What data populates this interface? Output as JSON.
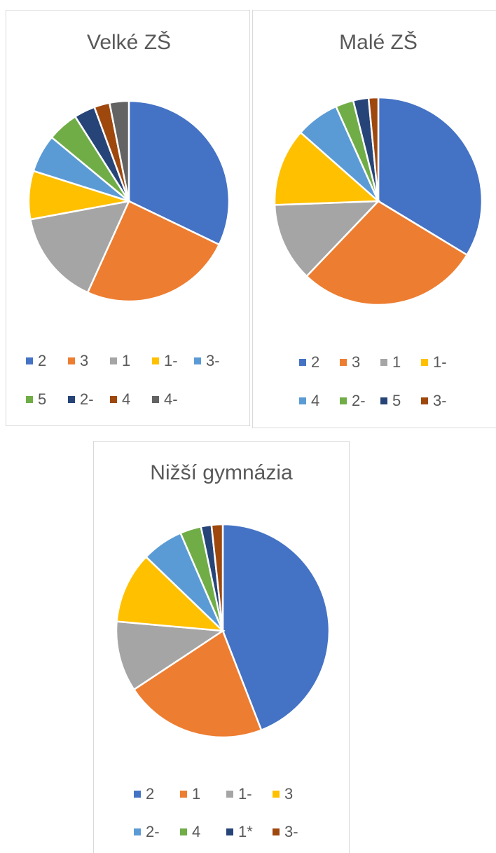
{
  "chart_data": [
    {
      "type": "pie",
      "title": "Velké ZŠ",
      "categories": [
        "2",
        "3",
        "1",
        "1-",
        "3-",
        "5",
        "2-",
        "4",
        "4-"
      ],
      "values": [
        32.1,
        24.6,
        15.3,
        7.8,
        6.1,
        5.0,
        3.4,
        2.5,
        3.1
      ],
      "colors": [
        "#4472c4",
        "#ed7d31",
        "#a5a5a5",
        "#ffc000",
        "#5b9bd5",
        "#70ad47",
        "#264478",
        "#9e480e",
        "#636363"
      ]
    },
    {
      "type": "pie",
      "title": "Malé ZŠ",
      "categories": [
        "2",
        "3",
        "1",
        "1-",
        "4",
        "2-",
        "5",
        "3-"
      ],
      "values": [
        33.7,
        28.5,
        12.3,
        12.1,
        6.8,
        2.8,
        2.4,
        1.5
      ],
      "colors": [
        "#4472c4",
        "#ed7d31",
        "#a5a5a5",
        "#ffc000",
        "#5b9bd5",
        "#70ad47",
        "#264478",
        "#9e480e"
      ]
    },
    {
      "type": "pie",
      "title": "Nižší gymnázia",
      "categories": [
        "2",
        "1",
        "1-",
        "3",
        "2-",
        "4",
        "1*",
        "3-"
      ],
      "values": [
        44.1,
        21.6,
        10.7,
        10.8,
        6.3,
        3.2,
        1.6,
        1.7
      ],
      "colors": [
        "#4472c4",
        "#ed7d31",
        "#a5a5a5",
        "#ffc000",
        "#5b9bd5",
        "#70ad47",
        "#264478",
        "#9e480e"
      ]
    }
  ]
}
